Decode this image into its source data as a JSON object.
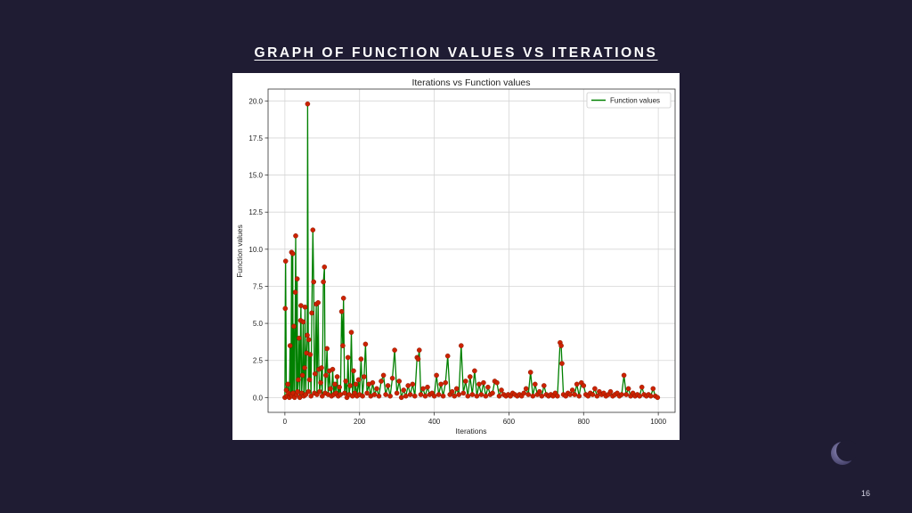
{
  "slide": {
    "title": "GRAPH OF FUNCTION VALUES VS ITERATIONS",
    "page_number": "16"
  },
  "colors": {
    "background": "#1f1c33",
    "line": "#008000",
    "marker": "#cc2200"
  },
  "chart_data": {
    "type": "line",
    "title": "Iterations vs Function values",
    "xlabel": "Iterations",
    "ylabel": "Function values",
    "xlim": [
      -45,
      1045
    ],
    "ylim": [
      -1.0,
      20.8
    ],
    "x_ticks": [
      0,
      200,
      400,
      600,
      800,
      1000
    ],
    "y_ticks": [
      0.0,
      2.5,
      5.0,
      7.5,
      10.0,
      12.5,
      15.0,
      17.5,
      20.0
    ],
    "grid": true,
    "legend": "top-right",
    "series": [
      {
        "name": "Function values",
        "points": [
          [
            0,
            0.0
          ],
          [
            1,
            6.0
          ],
          [
            2,
            9.2
          ],
          [
            4,
            0.5
          ],
          [
            6,
            0.1
          ],
          [
            8,
            0.9
          ],
          [
            10,
            0.3
          ],
          [
            12,
            0.0
          ],
          [
            14,
            3.5
          ],
          [
            16,
            0.2
          ],
          [
            18,
            9.8
          ],
          [
            19,
            0.1
          ],
          [
            21,
            9.7
          ],
          [
            22,
            0.3
          ],
          [
            24,
            4.8
          ],
          [
            26,
            0.0
          ],
          [
            28,
            7.1
          ],
          [
            29,
            10.9
          ],
          [
            31,
            0.2
          ],
          [
            33,
            8.0
          ],
          [
            34,
            0.4
          ],
          [
            36,
            1.2
          ],
          [
            38,
            4.0
          ],
          [
            40,
            0.0
          ],
          [
            42,
            5.2
          ],
          [
            43,
            6.2
          ],
          [
            45,
            0.3
          ],
          [
            47,
            1.5
          ],
          [
            49,
            5.1
          ],
          [
            51,
            0.1
          ],
          [
            53,
            2.0
          ],
          [
            54,
            6.1
          ],
          [
            56,
            0.2
          ],
          [
            58,
            3.0
          ],
          [
            60,
            4.2
          ],
          [
            61,
            19.8
          ],
          [
            63,
            0.4
          ],
          [
            64,
            3.9
          ],
          [
            66,
            1.2
          ],
          [
            68,
            2.9
          ],
          [
            70,
            0.1
          ],
          [
            72,
            5.7
          ],
          [
            75,
            11.3
          ],
          [
            77,
            7.8
          ],
          [
            79,
            0.3
          ],
          [
            81,
            1.6
          ],
          [
            84,
            6.3
          ],
          [
            86,
            0.2
          ],
          [
            89,
            6.4
          ],
          [
            91,
            1.9
          ],
          [
            93,
            0.4
          ],
          [
            96,
            1.0
          ],
          [
            98,
            2.0
          ],
          [
            100,
            0.1
          ],
          [
            103,
            7.8
          ],
          [
            106,
            8.8
          ],
          [
            108,
            0.3
          ],
          [
            110,
            1.5
          ],
          [
            113,
            3.3
          ],
          [
            116,
            0.2
          ],
          [
            119,
            1.8
          ],
          [
            122,
            0.6
          ],
          [
            125,
            0.1
          ],
          [
            128,
            1.9
          ],
          [
            131,
            0.2
          ],
          [
            134,
            0.9
          ],
          [
            137,
            0.3
          ],
          [
            140,
            1.4
          ],
          [
            143,
            0.1
          ],
          [
            146,
            0.7
          ],
          [
            149,
            0.2
          ],
          [
            152,
            5.8
          ],
          [
            155,
            3.5
          ],
          [
            157,
            6.7
          ],
          [
            160,
            0.3
          ],
          [
            163,
            1.1
          ],
          [
            166,
            0.0
          ],
          [
            169,
            2.7
          ],
          [
            172,
            0.2
          ],
          [
            175,
            0.8
          ],
          [
            178,
            4.4
          ],
          [
            181,
            0.1
          ],
          [
            184,
            1.8
          ],
          [
            187,
            0.3
          ],
          [
            190,
            0.9
          ],
          [
            193,
            0.1
          ],
          [
            197,
            1.2
          ],
          [
            200,
            0.2
          ],
          [
            204,
            2.6
          ],
          [
            208,
            0.1
          ],
          [
            212,
            1.4
          ],
          [
            216,
            3.6
          ],
          [
            220,
            0.3
          ],
          [
            225,
            0.9
          ],
          [
            230,
            0.1
          ],
          [
            235,
            1.0
          ],
          [
            240,
            0.2
          ],
          [
            246,
            0.6
          ],
          [
            252,
            0.1
          ],
          [
            258,
            1.1
          ],
          [
            264,
            1.5
          ],
          [
            270,
            0.2
          ],
          [
            276,
            0.8
          ],
          [
            282,
            0.1
          ],
          [
            288,
            1.3
          ],
          [
            294,
            3.2
          ],
          [
            300,
            0.3
          ],
          [
            306,
            1.1
          ],
          [
            312,
            0.0
          ],
          [
            318,
            0.5
          ],
          [
            324,
            0.1
          ],
          [
            330,
            0.8
          ],
          [
            336,
            0.2
          ],
          [
            342,
            0.9
          ],
          [
            348,
            0.1
          ],
          [
            354,
            2.7
          ],
          [
            357,
            2.6
          ],
          [
            360,
            3.2
          ],
          [
            364,
            0.2
          ],
          [
            370,
            0.6
          ],
          [
            376,
            0.1
          ],
          [
            382,
            0.7
          ],
          [
            388,
            0.2
          ],
          [
            394,
            0.3
          ],
          [
            400,
            0.1
          ],
          [
            406,
            1.5
          ],
          [
            412,
            0.2
          ],
          [
            418,
            0.9
          ],
          [
            424,
            0.1
          ],
          [
            430,
            1.0
          ],
          [
            436,
            2.8
          ],
          [
            442,
            0.2
          ],
          [
            448,
            0.4
          ],
          [
            454,
            0.1
          ],
          [
            460,
            0.6
          ],
          [
            466,
            0.2
          ],
          [
            472,
            3.5
          ],
          [
            478,
            0.3
          ],
          [
            484,
            1.1
          ],
          [
            490,
            0.1
          ],
          [
            496,
            1.4
          ],
          [
            502,
            0.2
          ],
          [
            508,
            1.8
          ],
          [
            514,
            0.1
          ],
          [
            520,
            0.9
          ],
          [
            526,
            0.2
          ],
          [
            532,
            1.0
          ],
          [
            538,
            0.1
          ],
          [
            544,
            0.7
          ],
          [
            550,
            0.2
          ],
          [
            556,
            0.3
          ],
          [
            562,
            1.1
          ],
          [
            568,
            1.0
          ],
          [
            574,
            0.1
          ],
          [
            580,
            0.5
          ],
          [
            586,
            0.2
          ],
          [
            592,
            0.1
          ],
          [
            598,
            0.2
          ],
          [
            604,
            0.1
          ],
          [
            610,
            0.3
          ],
          [
            616,
            0.2
          ],
          [
            622,
            0.1
          ],
          [
            628,
            0.2
          ],
          [
            634,
            0.1
          ],
          [
            640,
            0.3
          ],
          [
            646,
            0.6
          ],
          [
            652,
            0.2
          ],
          [
            658,
            1.7
          ],
          [
            664,
            0.1
          ],
          [
            670,
            0.9
          ],
          [
            676,
            0.2
          ],
          [
            682,
            0.4
          ],
          [
            688,
            0.1
          ],
          [
            694,
            0.8
          ],
          [
            700,
            0.2
          ],
          [
            706,
            0.1
          ],
          [
            712,
            0.2
          ],
          [
            718,
            0.1
          ],
          [
            724,
            0.3
          ],
          [
            730,
            0.1
          ],
          [
            737,
            3.7
          ],
          [
            740,
            3.5
          ],
          [
            742,
            2.3
          ],
          [
            746,
            0.2
          ],
          [
            752,
            0.1
          ],
          [
            758,
            0.3
          ],
          [
            764,
            0.2
          ],
          [
            770,
            0.5
          ],
          [
            776,
            0.2
          ],
          [
            782,
            0.9
          ],
          [
            788,
            0.1
          ],
          [
            794,
            1.0
          ],
          [
            800,
            0.8
          ],
          [
            806,
            0.2
          ],
          [
            812,
            0.1
          ],
          [
            818,
            0.3
          ],
          [
            824,
            0.2
          ],
          [
            830,
            0.6
          ],
          [
            836,
            0.1
          ],
          [
            842,
            0.4
          ],
          [
            848,
            0.2
          ],
          [
            854,
            0.3
          ],
          [
            860,
            0.1
          ],
          [
            866,
            0.2
          ],
          [
            872,
            0.4
          ],
          [
            878,
            0.1
          ],
          [
            884,
            0.2
          ],
          [
            890,
            0.3
          ],
          [
            896,
            0.1
          ],
          [
            902,
            0.2
          ],
          [
            908,
            1.5
          ],
          [
            914,
            0.2
          ],
          [
            920,
            0.6
          ],
          [
            926,
            0.1
          ],
          [
            932,
            0.3
          ],
          [
            938,
            0.1
          ],
          [
            944,
            0.2
          ],
          [
            950,
            0.1
          ],
          [
            956,
            0.7
          ],
          [
            962,
            0.2
          ],
          [
            968,
            0.1
          ],
          [
            974,
            0.2
          ],
          [
            980,
            0.1
          ],
          [
            986,
            0.6
          ],
          [
            992,
            0.1
          ],
          [
            998,
            0.0
          ]
        ]
      }
    ]
  }
}
